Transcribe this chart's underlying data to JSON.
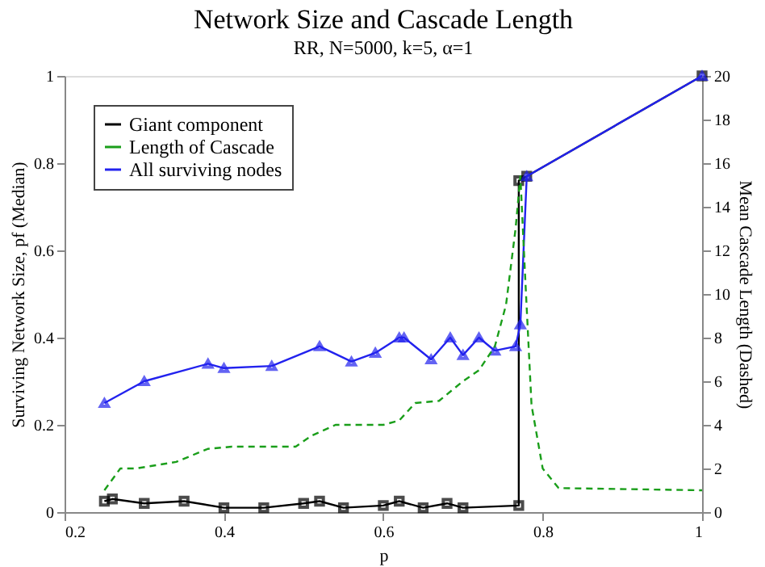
{
  "chart_data": {
    "type": "line",
    "title": "Network Size and Cascade Length",
    "subtitle": "RR, N=5000, k=5, α=1",
    "xlabel": "p",
    "ylabel": "Surviving Network Size, pf (Median)",
    "y2label": "Mean Cascade Length (Dashed)",
    "xlim": [
      0.2,
      1
    ],
    "xticks": [
      0.2,
      0.4,
      0.6,
      0.8,
      1
    ],
    "ylim": [
      0,
      1
    ],
    "yticks": [
      0,
      0.2,
      0.4,
      0.6,
      0.8,
      1
    ],
    "y2lim": [
      0,
      20
    ],
    "y2ticks": [
      0,
      2,
      4,
      6,
      8,
      10,
      12,
      14,
      16,
      18,
      20
    ],
    "legend": "top left",
    "grid": false,
    "series": [
      {
        "name": "Giant component",
        "color": "#000000",
        "marker": "square",
        "line_style": "solid",
        "x": [
          0.25,
          0.26,
          0.3,
          0.35,
          0.4,
          0.45,
          0.5,
          0.52,
          0.55,
          0.6,
          0.62,
          0.65,
          0.68,
          0.7,
          0.77,
          0.77,
          0.78,
          1.0
        ],
        "values": [
          0.025,
          0.03,
          0.02,
          0.025,
          0.01,
          0.01,
          0.02,
          0.025,
          0.01,
          0.015,
          0.025,
          0.01,
          0.02,
          0.01,
          0.015,
          0.76,
          0.77,
          1.0
        ]
      },
      {
        "name": "Length of Cascade",
        "color": "#1a9e1a",
        "marker": "none",
        "line_style": "dashed",
        "axis": "y2",
        "x": [
          0.25,
          0.27,
          0.29,
          0.34,
          0.38,
          0.41,
          0.49,
          0.51,
          0.54,
          0.6,
          0.62,
          0.64,
          0.67,
          0.7,
          0.72,
          0.74,
          0.754,
          0.766,
          0.772,
          0.778,
          0.786,
          0.8,
          0.82,
          1.0
        ],
        "values": [
          1.0,
          2.0,
          2.0,
          2.3,
          2.9,
          3.0,
          3.0,
          3.5,
          4.0,
          4.0,
          4.2,
          5.0,
          5.1,
          6.0,
          6.5,
          7.6,
          9.5,
          13.0,
          15.4,
          10.8,
          4.9,
          2.0,
          1.1,
          1.0
        ]
      },
      {
        "name": "All surviving nodes",
        "color": "#2222ee",
        "marker": "triangle",
        "line_style": "solid",
        "x": [
          0.25,
          0.3,
          0.38,
          0.4,
          0.46,
          0.52,
          0.56,
          0.59,
          0.62,
          0.626,
          0.66,
          0.684,
          0.7,
          0.72,
          0.74,
          0.766,
          0.772,
          0.78,
          1.0
        ],
        "values": [
          0.25,
          0.3,
          0.34,
          0.33,
          0.335,
          0.38,
          0.345,
          0.365,
          0.4,
          0.4,
          0.35,
          0.4,
          0.36,
          0.4,
          0.37,
          0.38,
          0.43,
          0.77,
          1.0
        ]
      }
    ]
  }
}
